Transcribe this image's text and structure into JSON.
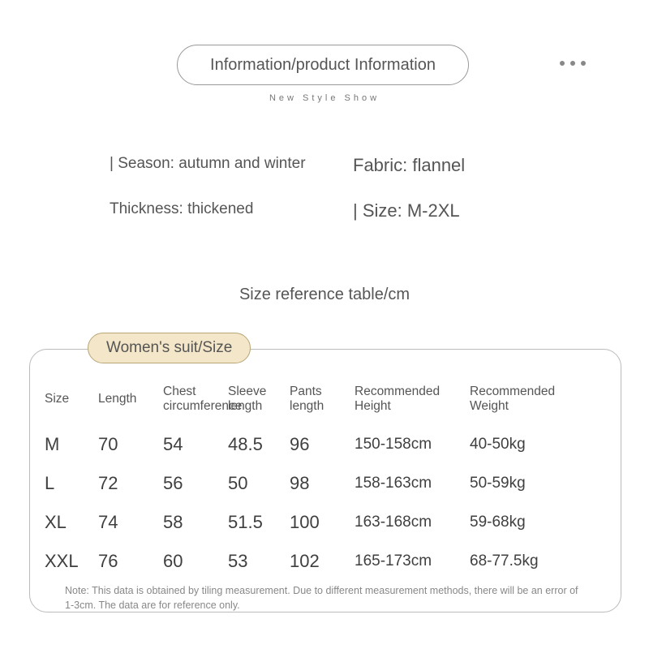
{
  "header": {
    "title": "Information/product Information",
    "subtitle": "New Style Show"
  },
  "info": {
    "season_label": "| Season: autumn and winter",
    "thickness_label": "Thickness: thickened",
    "fabric_label": "Fabric: flannel",
    "size_label": "| Size: M-2XL"
  },
  "size_ref_title": "Size reference table/cm",
  "badge": "Women's suit/Size",
  "table": {
    "columns": [
      "Size",
      "Length",
      "Chest circumference",
      "Sleeve length",
      "Pants length",
      "Recommended Height",
      "Recommended Weight"
    ],
    "rows": [
      [
        "M",
        "70",
        "54",
        "48.5",
        "96",
        "150-158cm",
        "40-50kg"
      ],
      [
        "L",
        "72",
        "56",
        "50",
        "98",
        "158-163cm",
        "50-59kg"
      ],
      [
        "XL",
        "74",
        "58",
        "51.5",
        "100",
        "163-168cm",
        "59-68kg"
      ],
      [
        "XXL",
        "76",
        "60",
        "53",
        "102",
        "165-173cm",
        "68-77.5kg"
      ]
    ]
  },
  "note": "Note: This data is obtained by tiling measurement. Due to different measurement methods, there will be an error of 1-3cm. The data are for reference only.",
  "colors": {
    "badge_bg": "#f4e6c8",
    "badge_border": "#b8a676",
    "card_border": "#bbbbbb",
    "text": "#4a4a4a",
    "dot": "#888888"
  }
}
